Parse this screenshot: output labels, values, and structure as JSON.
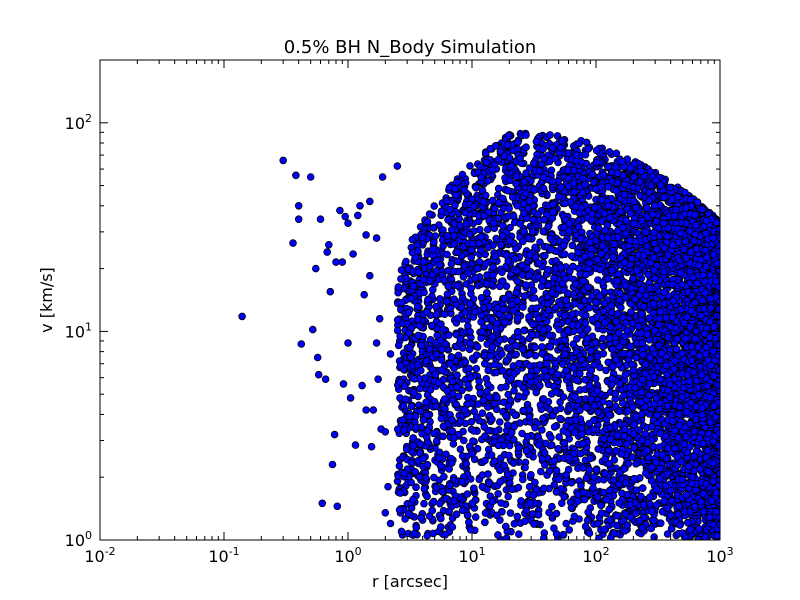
{
  "chart_data": {
    "type": "scatter",
    "title": "0.5% BH N_Body Simulation",
    "xlabel": "r [arcsec]",
    "ylabel": "v [km/s]",
    "xscale": "log",
    "yscale": "log",
    "xlim": [
      0.01,
      1000
    ],
    "ylim": [
      1,
      200
    ],
    "x_ticks": [
      {
        "base": "10",
        "exp": "-2",
        "value": 0.01
      },
      {
        "base": "10",
        "exp": "-1",
        "value": 0.1
      },
      {
        "base": "10",
        "exp": "0",
        "value": 1
      },
      {
        "base": "10",
        "exp": "1",
        "value": 10
      },
      {
        "base": "10",
        "exp": "2",
        "value": 100
      },
      {
        "base": "10",
        "exp": "3",
        "value": 1000
      }
    ],
    "y_ticks": [
      {
        "base": "10",
        "exp": "0",
        "value": 1
      },
      {
        "base": "10",
        "exp": "1",
        "value": 10
      },
      {
        "base": "10",
        "exp": "2",
        "value": 100
      }
    ],
    "grid": false,
    "marker_color": "#0000ff",
    "marker_edge": "#000000",
    "series": [
      {
        "outliers": [
          [
            0.14,
            11.8
          ],
          [
            0.3,
            66
          ],
          [
            0.36,
            26.5
          ],
          [
            0.38,
            56
          ],
          [
            0.4,
            40
          ],
          [
            0.4,
            34.5
          ],
          [
            0.42,
            8.7
          ],
          [
            0.5,
            55
          ],
          [
            0.52,
            10.2
          ],
          [
            0.55,
            20
          ],
          [
            0.57,
            7.5
          ],
          [
            0.58,
            6.2
          ],
          [
            0.6,
            34.5
          ],
          [
            0.62,
            1.5
          ],
          [
            0.66,
            5.9
          ],
          [
            0.68,
            24
          ],
          [
            0.7,
            26
          ],
          [
            0.72,
            15.5
          ],
          [
            0.75,
            2.3
          ],
          [
            0.78,
            3.2
          ],
          [
            0.8,
            21.5
          ],
          [
            0.82,
            1.45
          ],
          [
            0.86,
            38
          ],
          [
            0.9,
            21.5
          ],
          [
            0.92,
            5.6
          ],
          [
            0.95,
            35.5
          ],
          [
            1.0,
            33
          ],
          [
            1.0,
            8.8
          ],
          [
            1.05,
            4.8
          ],
          [
            1.1,
            23.5
          ],
          [
            1.15,
            2.85
          ],
          [
            1.2,
            36
          ],
          [
            1.25,
            40
          ],
          [
            1.3,
            5.5
          ],
          [
            1.35,
            15
          ],
          [
            1.4,
            4.2
          ],
          [
            1.4,
            29
          ],
          [
            1.5,
            42
          ],
          [
            1.5,
            18.5
          ],
          [
            1.55,
            2.8
          ],
          [
            1.6,
            4.2
          ],
          [
            1.7,
            28
          ],
          [
            1.8,
            11.5
          ],
          [
            1.85,
            3.4
          ],
          [
            1.9,
            55
          ],
          [
            2.0,
            3.3
          ],
          [
            2.1,
            1.8
          ],
          [
            2.0,
            1.35
          ],
          [
            2.2,
            1.2
          ],
          [
            2.5,
            62
          ],
          [
            2.7,
            1.1
          ],
          [
            1.7,
            8.8
          ],
          [
            1.75,
            5.9
          ],
          [
            2.2,
            7.8
          ]
        ],
        "bulk": {
          "r_range": [
            2.5,
            1000
          ],
          "v_max_range": [
            10,
            90
          ],
          "v_max_peak_r": 20,
          "v_min": 1,
          "count": 9000
        }
      }
    ]
  }
}
